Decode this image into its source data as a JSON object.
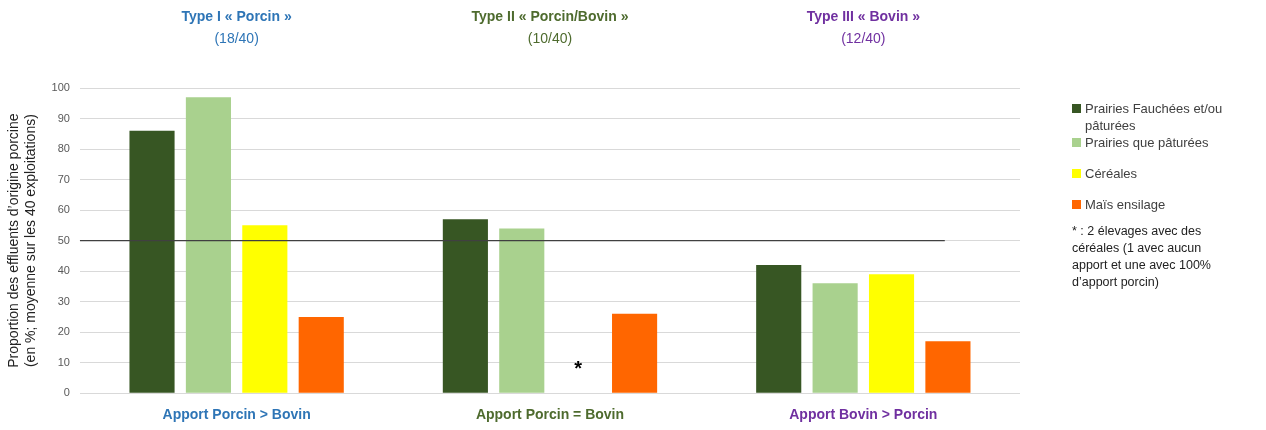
{
  "chart_data": {
    "type": "bar",
    "ylabel": "Proportion des effluents d’origine porcine\n(en %; moyenne sur les 40 exploitations)",
    "categories": [
      "Apport Porcin > Bovin",
      "Apport Porcin = Bovin",
      "Apport Bovin > Porcin"
    ],
    "series": [
      {
        "name": "Prairies Fauchées et/ou pâturées",
        "color": "#375623",
        "values": [
          86,
          57,
          42
        ]
      },
      {
        "name": "Prairies que pâturées",
        "color": "#a9d18e",
        "values": [
          97,
          54,
          36
        ]
      },
      {
        "name": "Céréales",
        "color": "#ffff00",
        "values": [
          55,
          null,
          39
        ]
      },
      {
        "name": "Maïs ensilage",
        "color": "#ff6600",
        "values": [
          25,
          26,
          17
        ]
      }
    ],
    "ylim": [
      0,
      100
    ],
    "yticks": [
      0,
      10,
      20,
      30,
      40,
      50,
      60,
      70,
      80,
      90,
      100
    ],
    "grid": "y",
    "legend": "right",
    "ref_lines": [
      {
        "axis": "y",
        "value": 50,
        "color": "#404040"
      }
    ],
    "annotations": [
      "Type I « Porcin »\n(18/40)",
      "Type II « Porcin/Bovin »\n(10/40)",
      "Type III « Bovin »\n(12/40)",
      "*",
      "* : 2 élevages avec des céréales (1 avec aucun apport et une avec 100% d’apport porcin)"
    ]
  }
}
